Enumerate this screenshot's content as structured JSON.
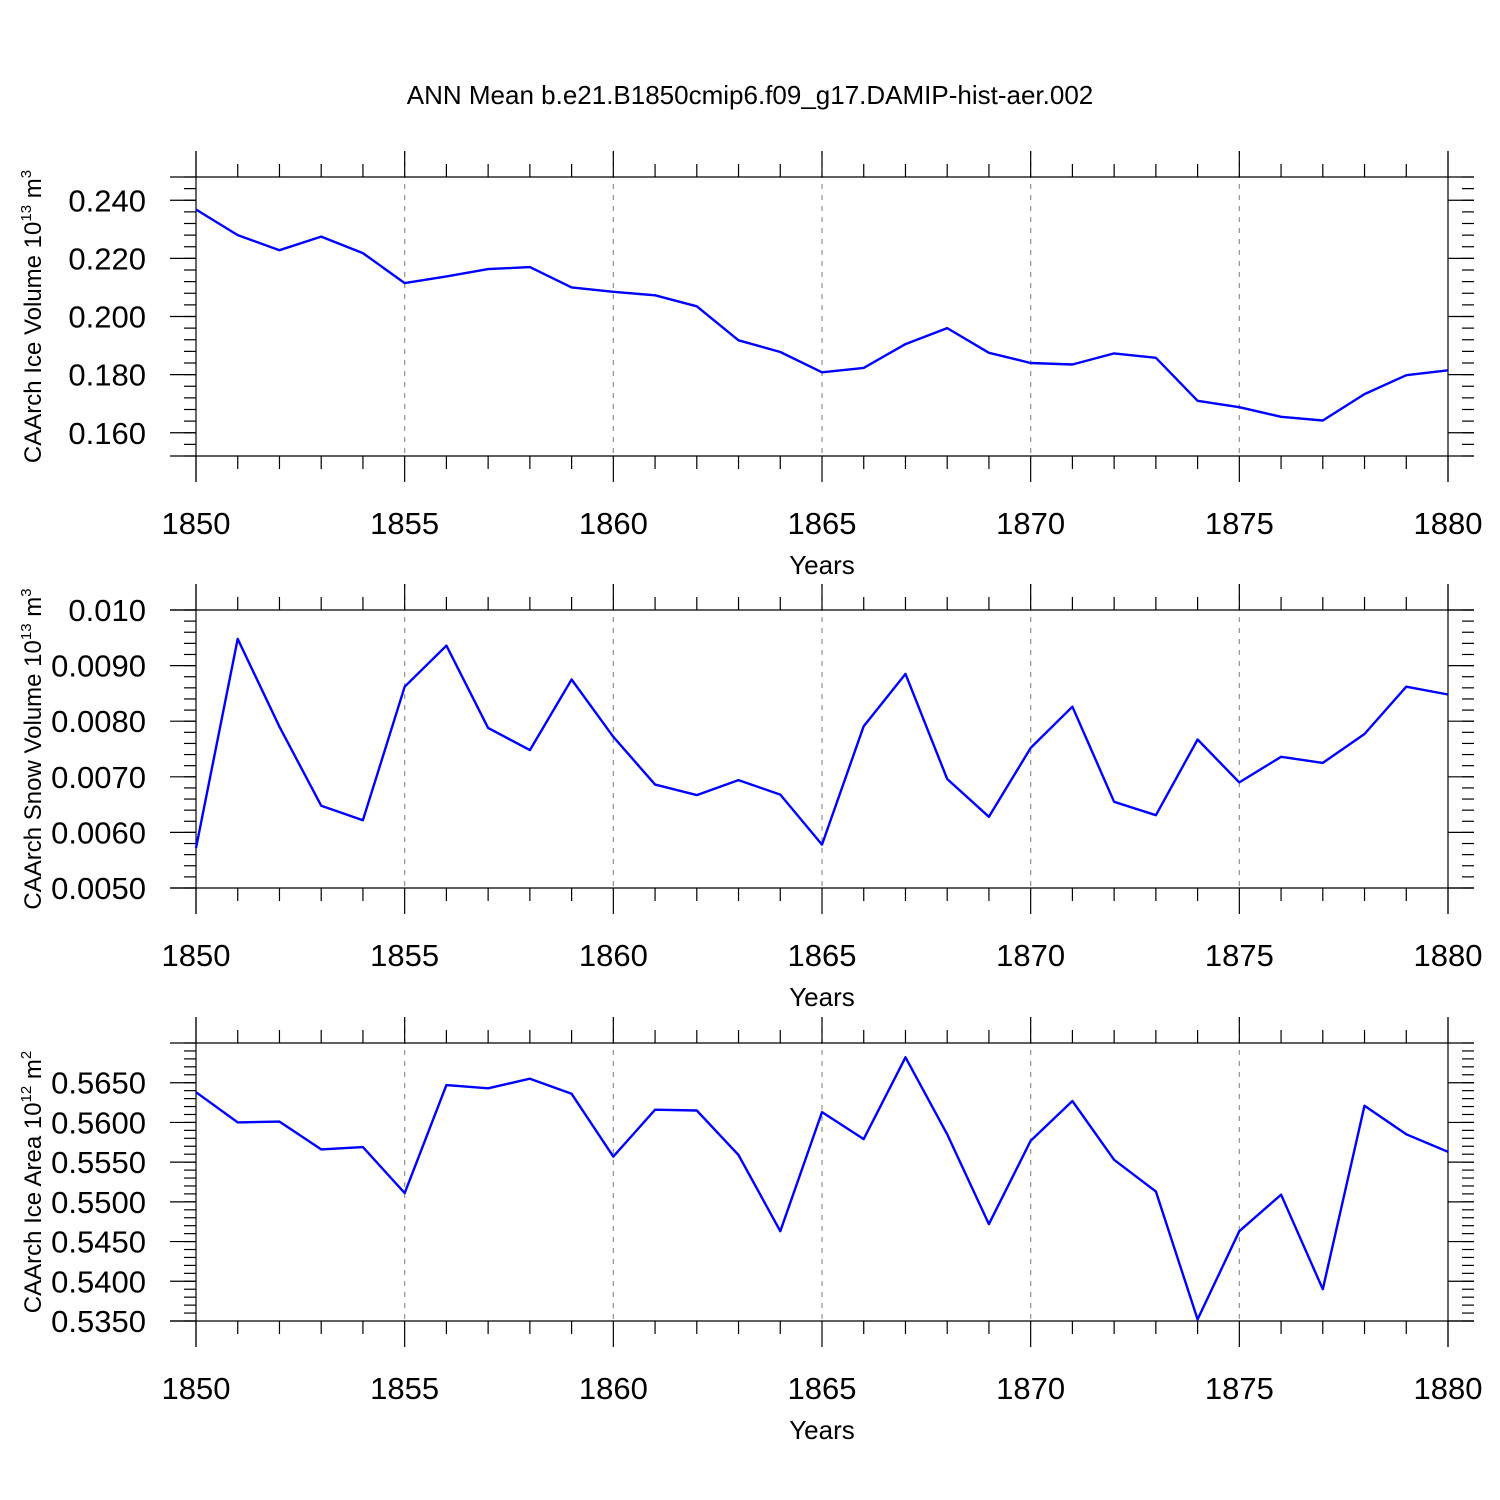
{
  "chart_data": {
    "title": "ANN Mean b.e21.B1850cmip6.f09_g17.DAMIP-hist-aer.002",
    "series_color": "#0000ff",
    "panels": [
      {
        "type": "line",
        "ylabel": {
          "main": "CAArch Ice Volume 10",
          "exp": "13",
          "unit": " m",
          "unit_exp": "3"
        },
        "xlabel": "Years",
        "xlim": [
          1850,
          1880
        ],
        "ylim": [
          0.152,
          0.248
        ],
        "x_ticks": [
          1850,
          1855,
          1860,
          1865,
          1870,
          1875,
          1880
        ],
        "x_tick_labels": [
          "1850",
          "1855",
          "1860",
          "1865",
          "1870",
          "1875",
          "1880"
        ],
        "y_ticks": [
          0.16,
          0.18,
          0.2,
          0.22,
          0.24
        ],
        "y_tick_labels": [
          "0.160",
          "0.180",
          "0.200",
          "0.220",
          "0.240"
        ],
        "y_minor_step": 0.004,
        "x": [
          1850,
          1851,
          1852,
          1853,
          1854,
          1855,
          1856,
          1857,
          1858,
          1859,
          1860,
          1861,
          1862,
          1863,
          1864,
          1865,
          1866,
          1867,
          1868,
          1869,
          1870,
          1871,
          1872,
          1873,
          1874,
          1875,
          1876,
          1877,
          1878,
          1879,
          1880
        ],
        "y": [
          0.2368,
          0.228,
          0.2228,
          0.2275,
          0.2218,
          0.2115,
          0.2138,
          0.2163,
          0.217,
          0.21,
          0.2085,
          0.2073,
          0.2035,
          0.1918,
          0.1878,
          0.1808,
          0.1823,
          0.1905,
          0.196,
          0.1875,
          0.184,
          0.1835,
          0.1873,
          0.1858,
          0.171,
          0.1688,
          0.1655,
          0.1642,
          0.1733,
          0.1798,
          0.1815
        ]
      },
      {
        "type": "line",
        "ylabel": {
          "main": "CAArch Snow Volume 10",
          "exp": "13",
          "unit": " m",
          "unit_exp": "3"
        },
        "xlabel": "Years",
        "xlim": [
          1850,
          1880
        ],
        "ylim": [
          0.005,
          0.01
        ],
        "x_ticks": [
          1850,
          1855,
          1860,
          1865,
          1870,
          1875,
          1880
        ],
        "x_tick_labels": [
          "1850",
          "1855",
          "1860",
          "1865",
          "1870",
          "1875",
          "1880"
        ],
        "y_ticks": [
          0.005,
          0.006,
          0.007,
          0.008,
          0.009,
          0.01
        ],
        "y_tick_labels": [
          "0.0050",
          "0.0060",
          "0.0070",
          "0.0080",
          "0.0090",
          "0.010"
        ],
        "y_minor_step": 0.0002,
        "x": [
          1850,
          1851,
          1852,
          1853,
          1854,
          1855,
          1856,
          1857,
          1858,
          1859,
          1860,
          1861,
          1862,
          1863,
          1864,
          1865,
          1866,
          1867,
          1868,
          1869,
          1870,
          1871,
          1872,
          1873,
          1874,
          1875,
          1876,
          1877,
          1878,
          1879,
          1880
        ],
        "y": [
          0.00572,
          0.00948,
          0.0079,
          0.00648,
          0.00622,
          0.00862,
          0.00936,
          0.00788,
          0.00748,
          0.00875,
          0.00772,
          0.00686,
          0.00667,
          0.00694,
          0.00668,
          0.00578,
          0.00791,
          0.00885,
          0.00696,
          0.00628,
          0.00752,
          0.00826,
          0.00655,
          0.00631,
          0.00767,
          0.0069,
          0.00736,
          0.00725,
          0.00777,
          0.00862,
          0.00848
        ]
      },
      {
        "type": "line",
        "ylabel": {
          "main": "CAArch Ice Area 10",
          "exp": "12",
          "unit": " m",
          "unit_exp": "2"
        },
        "xlabel": "Years",
        "xlim": [
          1850,
          1880
        ],
        "ylim": [
          0.535,
          0.57
        ],
        "x_ticks": [
          1850,
          1855,
          1860,
          1865,
          1870,
          1875,
          1880
        ],
        "x_tick_labels": [
          "1850",
          "1855",
          "1860",
          "1865",
          "1870",
          "1875",
          "1880"
        ],
        "y_ticks": [
          0.535,
          0.54,
          0.545,
          0.55,
          0.555,
          0.56,
          0.565
        ],
        "y_tick_labels": [
          "0.5350",
          "0.5400",
          "0.5450",
          "0.5500",
          "0.5550",
          "0.5600",
          "0.5650"
        ],
        "y_minor_step": 0.001,
        "x": [
          1850,
          1851,
          1852,
          1853,
          1854,
          1855,
          1856,
          1857,
          1858,
          1859,
          1860,
          1861,
          1862,
          1863,
          1864,
          1865,
          1866,
          1867,
          1868,
          1869,
          1870,
          1871,
          1872,
          1873,
          1874,
          1875,
          1876,
          1877,
          1878,
          1879,
          1880
        ],
        "y": [
          0.5638,
          0.56,
          0.5601,
          0.5566,
          0.5569,
          0.5511,
          0.5647,
          0.5643,
          0.5655,
          0.5636,
          0.5557,
          0.5616,
          0.5615,
          0.5559,
          0.5463,
          0.5613,
          0.5579,
          0.5682,
          0.5585,
          0.5472,
          0.5577,
          0.5627,
          0.5553,
          0.5513,
          0.5352,
          0.5463,
          0.5509,
          0.539,
          0.5621,
          0.5585,
          0.5563
        ]
      }
    ]
  }
}
